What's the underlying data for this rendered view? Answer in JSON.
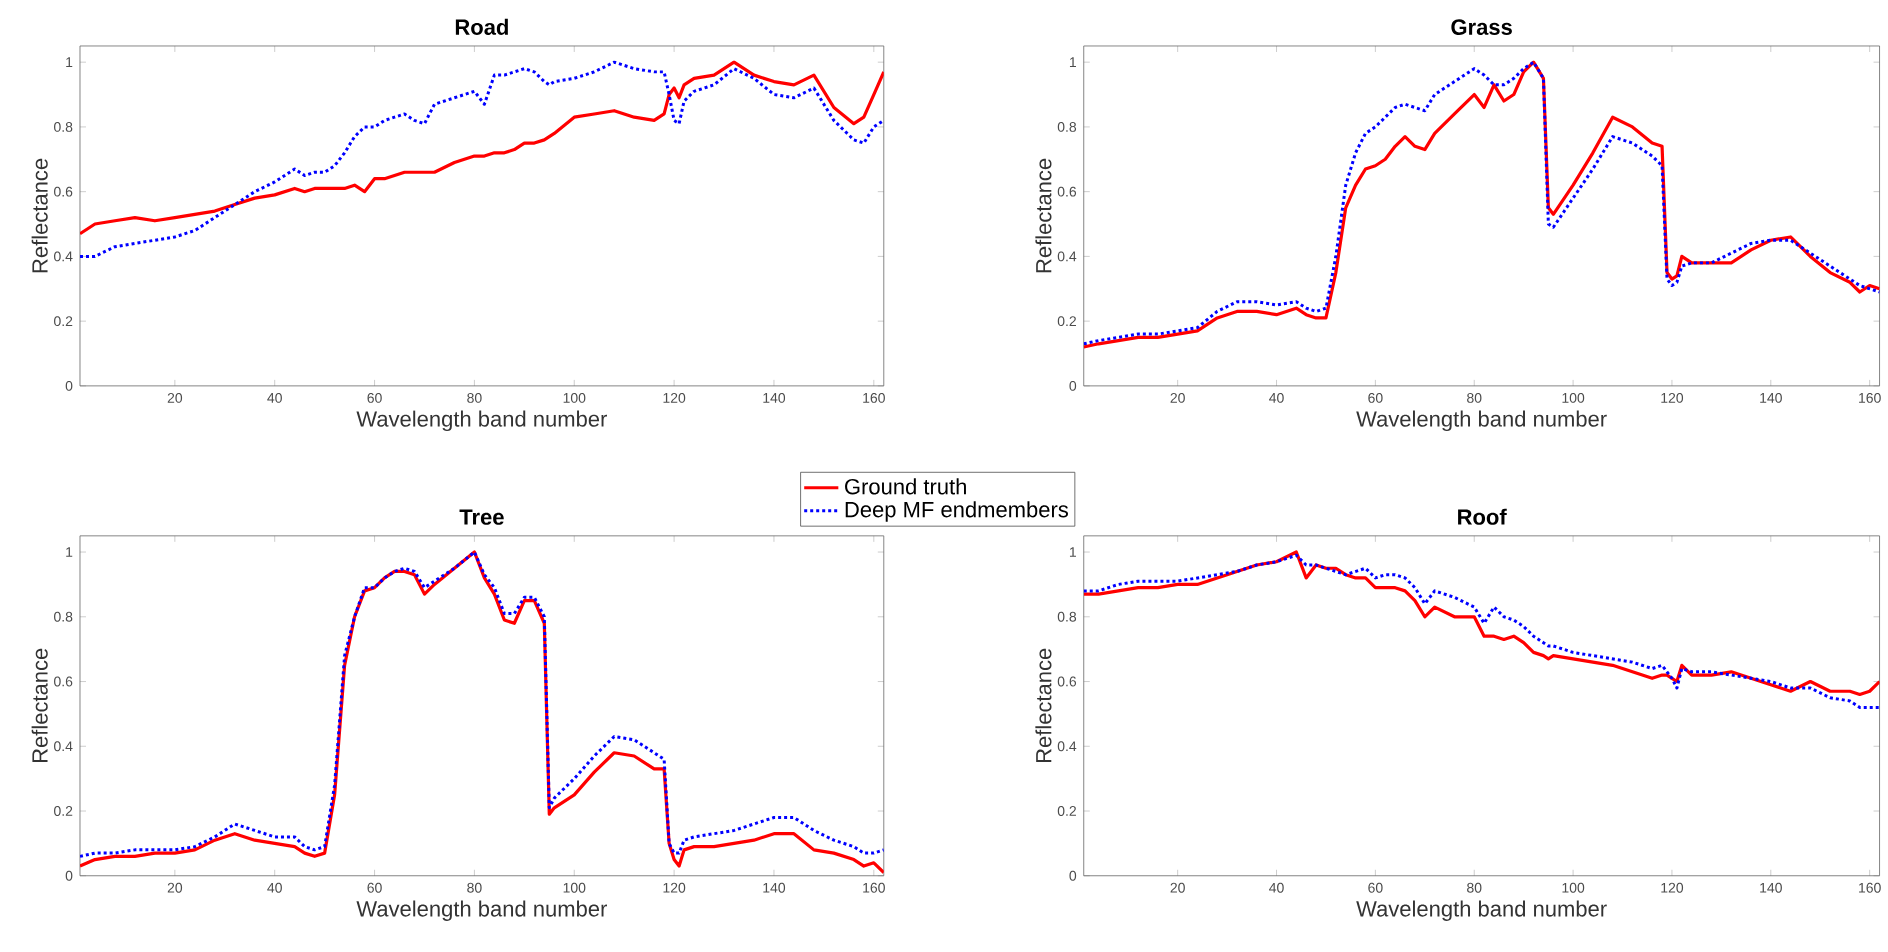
{
  "chart_data": [
    {
      "type": "line",
      "title": "Road",
      "xlabel": "Wavelength band number",
      "ylabel": "Reflectance",
      "legend": "bottom right",
      "x": [
        1,
        4,
        8,
        12,
        16,
        20,
        24,
        28,
        32,
        36,
        40,
        44,
        46,
        48,
        50,
        52,
        54,
        56,
        58,
        60,
        62,
        64,
        66,
        68,
        70,
        72,
        76,
        80,
        82,
        84,
        86,
        88,
        90,
        92,
        94,
        95,
        96,
        100,
        104,
        108,
        112,
        116,
        118,
        119,
        120,
        121,
        122,
        124,
        128,
        132,
        136,
        140,
        144,
        148,
        152,
        156,
        158,
        160,
        162
      ],
      "xlim": [
        1,
        162
      ],
      "ylim": [
        0,
        1.05
      ],
      "xticks": [
        20,
        40,
        60,
        80,
        100,
        120,
        140,
        160
      ],
      "yticks": [
        0,
        0.2,
        0.4,
        0.6,
        0.8,
        1
      ],
      "series": [
        {
          "name": "Ground truth",
          "color": "#ff0000",
          "line_style": "solid",
          "values": [
            0.47,
            0.5,
            0.51,
            0.52,
            0.51,
            0.52,
            0.53,
            0.54,
            0.56,
            0.58,
            0.59,
            0.61,
            0.6,
            0.61,
            0.61,
            0.61,
            0.61,
            0.62,
            0.6,
            0.64,
            0.64,
            0.65,
            0.66,
            0.66,
            0.66,
            0.66,
            0.69,
            0.71,
            0.71,
            0.72,
            0.72,
            0.73,
            0.75,
            0.75,
            0.76,
            0.77,
            0.78,
            0.83,
            0.84,
            0.85,
            0.83,
            0.82,
            0.84,
            0.9,
            0.92,
            0.89,
            0.93,
            0.95,
            0.96,
            1.0,
            0.96,
            0.94,
            0.93,
            0.96,
            0.86,
            0.81,
            0.83,
            0.9,
            0.97
          ]
        },
        {
          "name": "Deep MF endmembers",
          "color": "#0000ff",
          "line_style": "dotted",
          "values": [
            0.4,
            0.4,
            0.43,
            0.44,
            0.45,
            0.46,
            0.48,
            0.52,
            0.56,
            0.6,
            0.63,
            0.67,
            0.65,
            0.66,
            0.66,
            0.68,
            0.72,
            0.77,
            0.8,
            0.8,
            0.82,
            0.83,
            0.84,
            0.82,
            0.81,
            0.87,
            0.89,
            0.91,
            0.87,
            0.96,
            0.96,
            0.97,
            0.98,
            0.97,
            0.94,
            0.93,
            0.94,
            0.95,
            0.97,
            1.0,
            0.98,
            0.97,
            0.97,
            0.9,
            0.82,
            0.81,
            0.88,
            0.91,
            0.93,
            0.98,
            0.95,
            0.9,
            0.89,
            0.92,
            0.82,
            0.76,
            0.75,
            0.8,
            0.82
          ]
        }
      ]
    },
    {
      "type": "line",
      "title": "Grass",
      "xlabel": "Wavelength band number",
      "ylabel": "Reflectance",
      "x": [
        1,
        4,
        8,
        12,
        16,
        20,
        24,
        28,
        32,
        36,
        40,
        44,
        46,
        48,
        50,
        52,
        54,
        56,
        58,
        60,
        62,
        64,
        66,
        68,
        70,
        72,
        76,
        80,
        82,
        84,
        86,
        88,
        90,
        92,
        94,
        95,
        96,
        100,
        104,
        108,
        112,
        116,
        118,
        119,
        120,
        121,
        122,
        124,
        128,
        132,
        136,
        140,
        144,
        148,
        152,
        156,
        158,
        160,
        162
      ],
      "xlim": [
        1,
        162
      ],
      "ylim": [
        0,
        1.05
      ],
      "xticks": [
        20,
        40,
        60,
        80,
        100,
        120,
        140,
        160
      ],
      "yticks": [
        0,
        0.2,
        0.4,
        0.6,
        0.8,
        1
      ],
      "series": [
        {
          "color": "#ff0000",
          "line_style": "solid",
          "values": [
            0.12,
            0.13,
            0.14,
            0.15,
            0.15,
            0.16,
            0.17,
            0.21,
            0.23,
            0.23,
            0.22,
            0.24,
            0.22,
            0.21,
            0.21,
            0.35,
            0.55,
            0.62,
            0.67,
            0.68,
            0.7,
            0.74,
            0.77,
            0.74,
            0.73,
            0.78,
            0.84,
            0.9,
            0.86,
            0.93,
            0.88,
            0.9,
            0.97,
            1.0,
            0.95,
            0.55,
            0.53,
            0.62,
            0.72,
            0.83,
            0.8,
            0.75,
            0.74,
            0.35,
            0.33,
            0.34,
            0.4,
            0.38,
            0.38,
            0.38,
            0.42,
            0.45,
            0.46,
            0.4,
            0.35,
            0.32,
            0.29,
            0.31,
            0.3
          ]
        },
        {
          "color": "#0000ff",
          "line_style": "dotted",
          "values": [
            0.13,
            0.14,
            0.15,
            0.16,
            0.16,
            0.17,
            0.18,
            0.23,
            0.26,
            0.26,
            0.25,
            0.26,
            0.24,
            0.23,
            0.24,
            0.4,
            0.62,
            0.72,
            0.78,
            0.8,
            0.83,
            0.86,
            0.87,
            0.86,
            0.85,
            0.9,
            0.94,
            0.98,
            0.96,
            0.93,
            0.93,
            0.95,
            0.98,
            1.0,
            0.95,
            0.5,
            0.49,
            0.58,
            0.67,
            0.77,
            0.75,
            0.71,
            0.68,
            0.33,
            0.31,
            0.32,
            0.37,
            0.38,
            0.38,
            0.41,
            0.44,
            0.45,
            0.45,
            0.41,
            0.37,
            0.33,
            0.31,
            0.3,
            0.29
          ]
        }
      ]
    },
    {
      "type": "line",
      "title": "Tree",
      "xlabel": "Wavelength band number",
      "ylabel": "Reflectance",
      "x": [
        1,
        4,
        8,
        12,
        16,
        20,
        24,
        28,
        32,
        36,
        40,
        44,
        46,
        48,
        50,
        52,
        54,
        56,
        58,
        60,
        62,
        64,
        66,
        68,
        70,
        72,
        76,
        80,
        82,
        84,
        86,
        88,
        90,
        92,
        94,
        95,
        96,
        100,
        104,
        108,
        112,
        116,
        118,
        119,
        120,
        121,
        122,
        124,
        128,
        132,
        136,
        140,
        144,
        148,
        152,
        156,
        158,
        160,
        162
      ],
      "xlim": [
        1,
        162
      ],
      "ylim": [
        0,
        1.05
      ],
      "xticks": [
        20,
        40,
        60,
        80,
        100,
        120,
        140,
        160
      ],
      "yticks": [
        0,
        0.2,
        0.4,
        0.6,
        0.8,
        1
      ],
      "series": [
        {
          "color": "#ff0000",
          "line_style": "solid",
          "values": [
            0.03,
            0.05,
            0.06,
            0.06,
            0.07,
            0.07,
            0.08,
            0.11,
            0.13,
            0.11,
            0.1,
            0.09,
            0.07,
            0.06,
            0.07,
            0.25,
            0.65,
            0.8,
            0.88,
            0.89,
            0.92,
            0.94,
            0.94,
            0.93,
            0.87,
            0.9,
            0.95,
            1.0,
            0.92,
            0.87,
            0.79,
            0.78,
            0.85,
            0.85,
            0.78,
            0.19,
            0.21,
            0.25,
            0.32,
            0.38,
            0.37,
            0.33,
            0.33,
            0.1,
            0.05,
            0.03,
            0.08,
            0.09,
            0.09,
            0.1,
            0.11,
            0.13,
            0.13,
            0.08,
            0.07,
            0.05,
            0.03,
            0.04,
            0.01
          ]
        },
        {
          "color": "#0000ff",
          "line_style": "dotted",
          "values": [
            0.06,
            0.07,
            0.07,
            0.08,
            0.08,
            0.08,
            0.09,
            0.12,
            0.16,
            0.14,
            0.12,
            0.12,
            0.09,
            0.08,
            0.09,
            0.28,
            0.68,
            0.8,
            0.89,
            0.89,
            0.92,
            0.94,
            0.95,
            0.94,
            0.89,
            0.91,
            0.95,
            1.0,
            0.93,
            0.89,
            0.81,
            0.81,
            0.86,
            0.86,
            0.8,
            0.21,
            0.24,
            0.3,
            0.37,
            0.43,
            0.42,
            0.38,
            0.36,
            0.1,
            0.07,
            0.07,
            0.11,
            0.12,
            0.13,
            0.14,
            0.16,
            0.18,
            0.18,
            0.14,
            0.11,
            0.09,
            0.07,
            0.07,
            0.08
          ]
        }
      ]
    },
    {
      "type": "line",
      "title": "Roof",
      "xlabel": "Wavelength band number",
      "ylabel": "Reflectance",
      "x": [
        1,
        4,
        8,
        12,
        16,
        20,
        24,
        28,
        32,
        36,
        40,
        44,
        46,
        48,
        50,
        52,
        54,
        56,
        58,
        60,
        62,
        64,
        66,
        68,
        70,
        72,
        76,
        80,
        82,
        84,
        86,
        88,
        90,
        92,
        94,
        95,
        96,
        100,
        104,
        108,
        112,
        116,
        118,
        119,
        120,
        121,
        122,
        124,
        128,
        132,
        136,
        140,
        144,
        148,
        152,
        156,
        158,
        160,
        162
      ],
      "xlim": [
        1,
        162
      ],
      "ylim": [
        0,
        1.05
      ],
      "xticks": [
        20,
        40,
        60,
        80,
        100,
        120,
        140,
        160
      ],
      "yticks": [
        0,
        0.2,
        0.4,
        0.6,
        0.8,
        1
      ],
      "series": [
        {
          "color": "#ff0000",
          "line_style": "solid",
          "values": [
            0.87,
            0.87,
            0.88,
            0.89,
            0.89,
            0.9,
            0.9,
            0.92,
            0.94,
            0.96,
            0.97,
            1.0,
            0.92,
            0.96,
            0.95,
            0.95,
            0.93,
            0.92,
            0.92,
            0.89,
            0.89,
            0.89,
            0.88,
            0.85,
            0.8,
            0.83,
            0.8,
            0.8,
            0.74,
            0.74,
            0.73,
            0.74,
            0.72,
            0.69,
            0.68,
            0.67,
            0.68,
            0.67,
            0.66,
            0.65,
            0.63,
            0.61,
            0.62,
            0.62,
            0.61,
            0.6,
            0.65,
            0.62,
            0.62,
            0.63,
            0.61,
            0.59,
            0.57,
            0.6,
            0.57,
            0.57,
            0.56,
            0.57,
            0.6
          ]
        },
        {
          "color": "#0000ff",
          "line_style": "dotted",
          "values": [
            0.88,
            0.88,
            0.9,
            0.91,
            0.91,
            0.91,
            0.92,
            0.93,
            0.94,
            0.96,
            0.97,
            0.99,
            0.96,
            0.96,
            0.95,
            0.94,
            0.93,
            0.94,
            0.95,
            0.92,
            0.93,
            0.93,
            0.92,
            0.89,
            0.84,
            0.88,
            0.86,
            0.83,
            0.78,
            0.83,
            0.8,
            0.79,
            0.77,
            0.74,
            0.72,
            0.71,
            0.71,
            0.69,
            0.68,
            0.67,
            0.66,
            0.64,
            0.65,
            0.63,
            0.61,
            0.58,
            0.64,
            0.63,
            0.63,
            0.62,
            0.61,
            0.6,
            0.58,
            0.58,
            0.55,
            0.54,
            0.52,
            0.52,
            0.52
          ]
        }
      ]
    }
  ]
}
